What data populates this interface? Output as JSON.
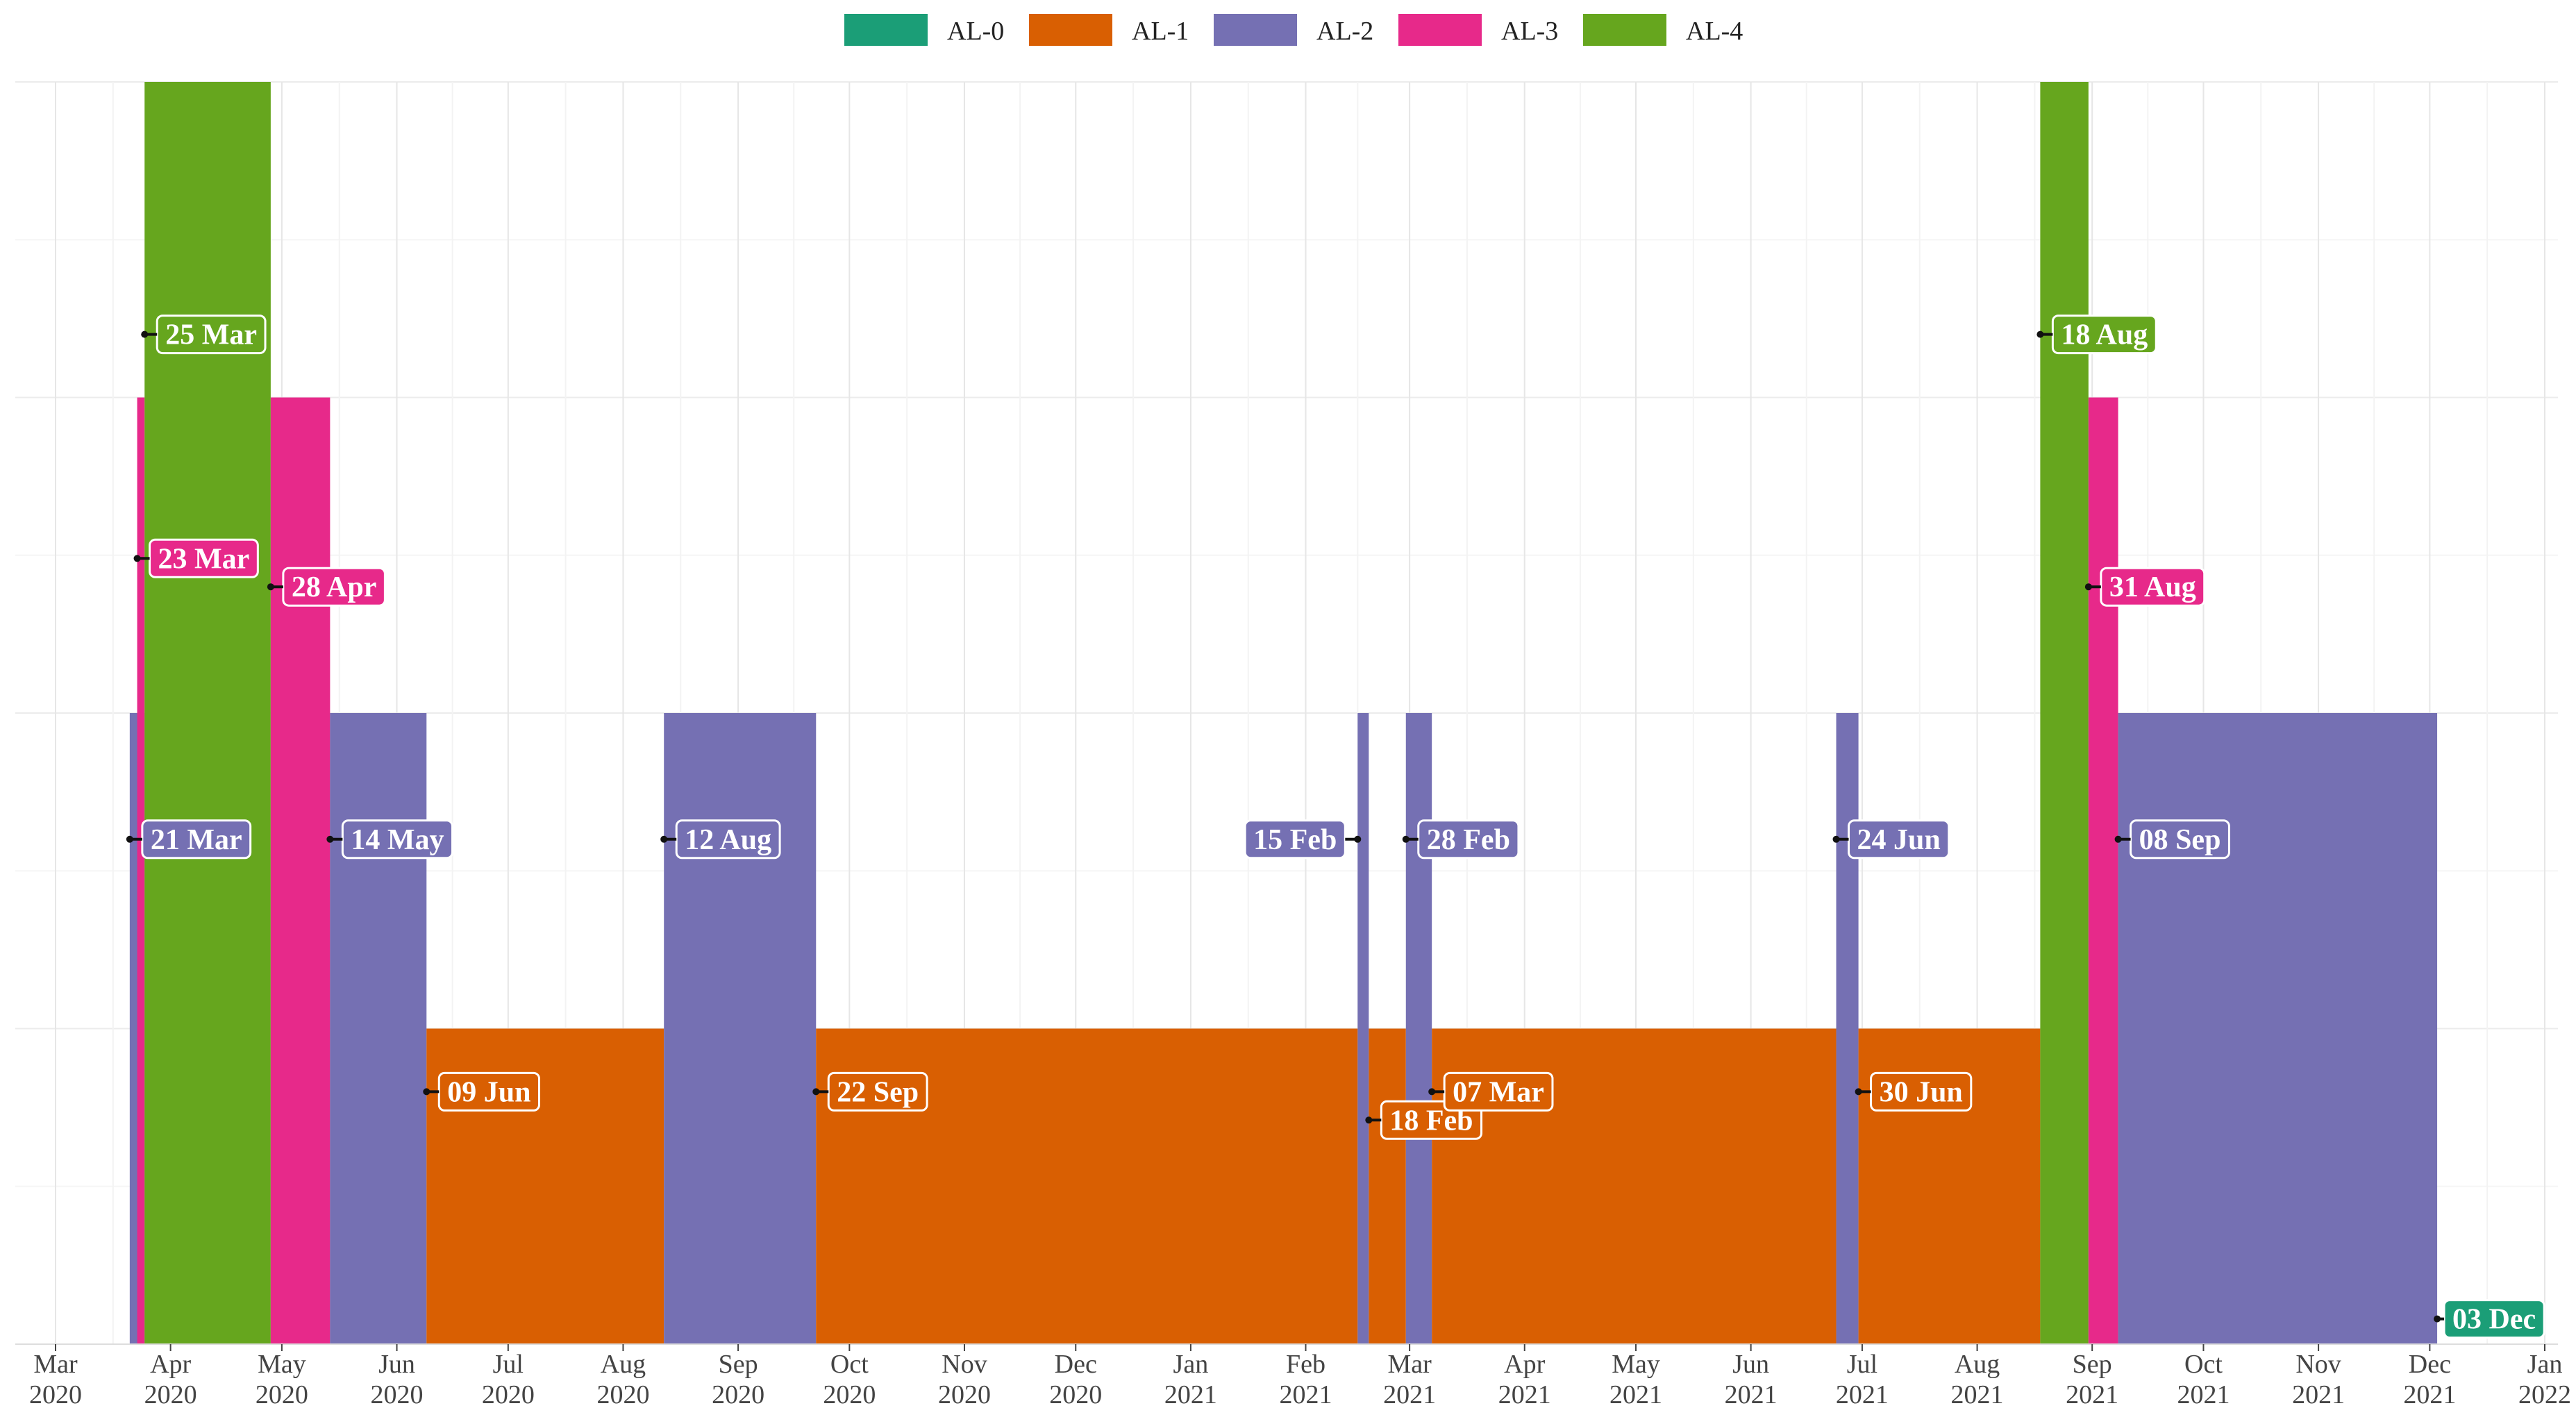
{
  "chart_data": {
    "type": "bar",
    "title": "",
    "xlabel": "",
    "ylabel": "",
    "x_range": [
      "2020-03-01",
      "2022-01-01"
    ],
    "ylim": [
      0,
      4
    ],
    "grid": true,
    "legend_position": "top",
    "colors": {
      "AL-0": "#1b9e77",
      "AL-1": "#d95f02",
      "AL-2": "#7570b3",
      "AL-3": "#e7298a",
      "AL-4": "#66a61e"
    },
    "legend": [
      "AL-0",
      "AL-1",
      "AL-2",
      "AL-3",
      "AL-4"
    ],
    "x_ticks": [
      {
        "date": "2020-03-01",
        "month": "Mar",
        "year": "2020"
      },
      {
        "date": "2020-04-01",
        "month": "Apr",
        "year": "2020"
      },
      {
        "date": "2020-05-01",
        "month": "May",
        "year": "2020"
      },
      {
        "date": "2020-06-01",
        "month": "Jun",
        "year": "2020"
      },
      {
        "date": "2020-07-01",
        "month": "Jul",
        "year": "2020"
      },
      {
        "date": "2020-08-01",
        "month": "Aug",
        "year": "2020"
      },
      {
        "date": "2020-09-01",
        "month": "Sep",
        "year": "2020"
      },
      {
        "date": "2020-10-01",
        "month": "Oct",
        "year": "2020"
      },
      {
        "date": "2020-11-01",
        "month": "Nov",
        "year": "2020"
      },
      {
        "date": "2020-12-01",
        "month": "Dec",
        "year": "2020"
      },
      {
        "date": "2021-01-01",
        "month": "Jan",
        "year": "2021"
      },
      {
        "date": "2021-02-01",
        "month": "Feb",
        "year": "2021"
      },
      {
        "date": "2021-03-01",
        "month": "Mar",
        "year": "2021"
      },
      {
        "date": "2021-04-01",
        "month": "Apr",
        "year": "2021"
      },
      {
        "date": "2021-05-01",
        "month": "May",
        "year": "2021"
      },
      {
        "date": "2021-06-01",
        "month": "Jun",
        "year": "2021"
      },
      {
        "date": "2021-07-01",
        "month": "Jul",
        "year": "2021"
      },
      {
        "date": "2021-08-01",
        "month": "Aug",
        "year": "2021"
      },
      {
        "date": "2021-09-01",
        "month": "Sep",
        "year": "2021"
      },
      {
        "date": "2021-10-01",
        "month": "Oct",
        "year": "2021"
      },
      {
        "date": "2021-11-01",
        "month": "Nov",
        "year": "2021"
      },
      {
        "date": "2021-12-01",
        "month": "Dec",
        "year": "2021"
      },
      {
        "date": "2022-01-01",
        "month": "Jan",
        "year": "2022"
      }
    ],
    "series": [
      {
        "name": "AL-2",
        "start": "2020-03-21",
        "end": "2020-03-25",
        "level": 2,
        "label": "21 Mar"
      },
      {
        "name": "AL-3",
        "start": "2020-03-23",
        "end": "2020-03-25",
        "level": 3,
        "label": "23 Mar"
      },
      {
        "name": "AL-4",
        "start": "2020-03-25",
        "end": "2020-04-28",
        "level": 4,
        "label": "25 Mar"
      },
      {
        "name": "AL-3",
        "start": "2020-04-28",
        "end": "2020-05-14",
        "level": 3,
        "label": "28 Apr"
      },
      {
        "name": "AL-2",
        "start": "2020-05-14",
        "end": "2020-06-09",
        "level": 2,
        "label": "14 May"
      },
      {
        "name": "AL-1",
        "start": "2020-06-09",
        "end": "2020-08-12",
        "level": 1,
        "label": "09 Jun"
      },
      {
        "name": "AL-2",
        "start": "2020-08-12",
        "end": "2020-09-22",
        "level": 2,
        "label": "12 Aug"
      },
      {
        "name": "AL-1",
        "start": "2020-09-22",
        "end": "2021-02-15",
        "level": 1,
        "label": "22 Sep"
      },
      {
        "name": "AL-2",
        "start": "2021-02-15",
        "end": "2021-02-18",
        "level": 2,
        "label": "15 Feb"
      },
      {
        "name": "AL-1",
        "start": "2021-02-18",
        "end": "2021-02-28",
        "level": 1,
        "label": "18 Feb"
      },
      {
        "name": "AL-2",
        "start": "2021-02-28",
        "end": "2021-03-07",
        "level": 2,
        "label": "28 Feb"
      },
      {
        "name": "AL-1",
        "start": "2021-03-07",
        "end": "2021-06-24",
        "level": 1,
        "label": "07 Mar"
      },
      {
        "name": "AL-2",
        "start": "2021-06-24",
        "end": "2021-06-30",
        "level": 2,
        "label": "24 Jun"
      },
      {
        "name": "AL-1",
        "start": "2021-06-30",
        "end": "2021-08-18",
        "level": 1,
        "label": "30 Jun"
      },
      {
        "name": "AL-4",
        "start": "2021-08-18",
        "end": "2021-08-31",
        "level": 4,
        "label": "18 Aug"
      },
      {
        "name": "AL-3",
        "start": "2021-08-31",
        "end": "2021-09-08",
        "level": 3,
        "label": "31 Aug"
      },
      {
        "name": "AL-2",
        "start": "2021-09-08",
        "end": "2021-12-03",
        "level": 2,
        "label": "08 Sep"
      },
      {
        "name": "AL-0",
        "start": "2021-12-03",
        "end": "2021-12-03",
        "level": 0,
        "label": "03 Dec"
      }
    ],
    "label_levels": {
      "AL-0": 0.08,
      "AL-1": 0.8,
      "AL-2": 1.6,
      "AL-3": 2.4,
      "AL-4": 3.2
    },
    "label_level_overrides": {
      "23 Mar": 2.49,
      "18 Feb": 0.71
    },
    "label_sides": {
      "15 Feb": "left"
    }
  }
}
